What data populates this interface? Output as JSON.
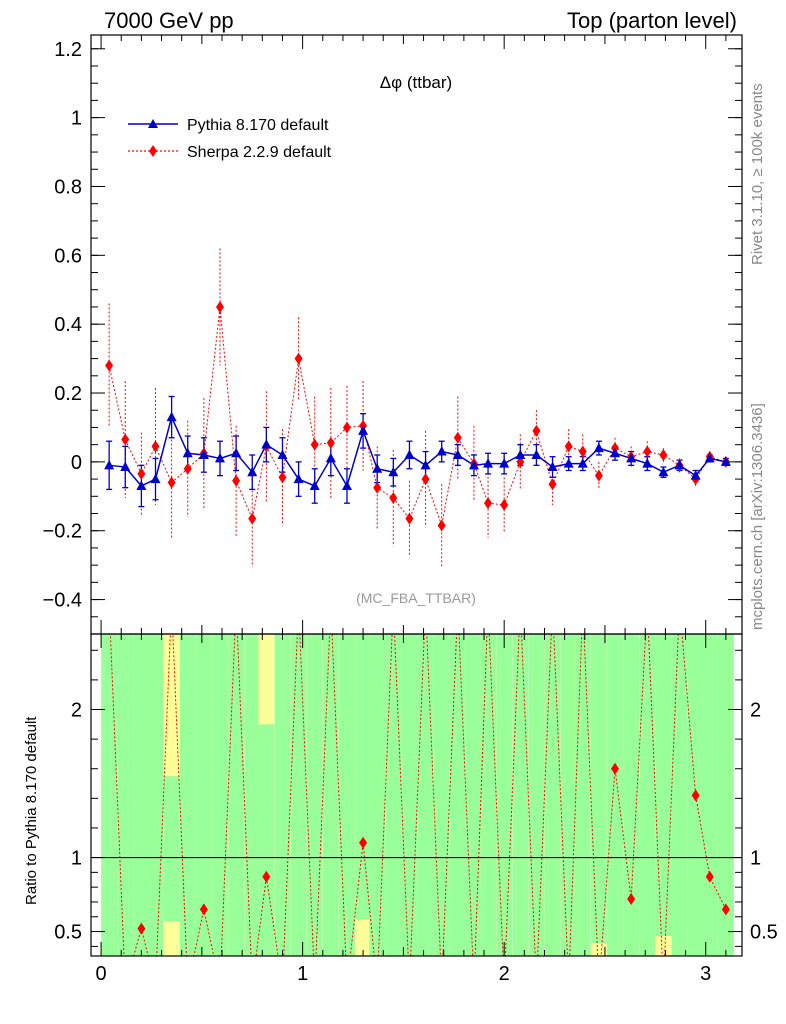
{
  "header": {
    "left": "7000 GeV pp",
    "right": "Top (parton level)"
  },
  "side_labels": {
    "rivet": "Rivet 3.1.10, ≥ 100k events",
    "mcplots": "mcplots.cern.ch [arXiv:1306.3436]"
  },
  "watermark": "(MC_FBA_TTBAR)",
  "chart_data": [
    {
      "type": "line",
      "title": "Δφ (ttbar)",
      "xlim": [
        -0.05,
        3.18
      ],
      "ylim": [
        -0.5,
        1.24
      ],
      "y_ticks": [
        -0.4,
        -0.2,
        0,
        0.2,
        0.4,
        0.6,
        0.8,
        1.0,
        1.2
      ],
      "y_tick_labels": [
        "−0.4",
        "−0.2",
        "0",
        "0.2",
        "0.4",
        "0.6",
        "0.8",
        "1",
        "1.2"
      ],
      "legend_position": "top-left",
      "x": [
        0.04,
        0.12,
        0.2,
        0.27,
        0.35,
        0.43,
        0.51,
        0.59,
        0.67,
        0.75,
        0.82,
        0.9,
        0.98,
        1.06,
        1.14,
        1.22,
        1.3,
        1.37,
        1.45,
        1.53,
        1.61,
        1.69,
        1.77,
        1.85,
        1.92,
        2.0,
        2.08,
        2.16,
        2.24,
        2.32,
        2.39,
        2.47,
        2.55,
        2.63,
        2.71,
        2.79,
        2.87,
        2.95,
        3.02,
        3.1
      ],
      "series": [
        {
          "name": "Pythia 8.170 default",
          "color": "#0000cc",
          "marker": "triangle",
          "values": [
            -0.01,
            -0.015,
            -0.07,
            -0.05,
            0.13,
            0.025,
            0.02,
            0.01,
            0.025,
            -0.03,
            0.05,
            0.02,
            -0.05,
            -0.07,
            0.01,
            -0.07,
            0.09,
            -0.02,
            -0.03,
            0.02,
            -0.01,
            0.03,
            0.02,
            -0.01,
            -0.005,
            -0.005,
            0.02,
            0.02,
            -0.015,
            -0.005,
            -0.005,
            0.04,
            0.025,
            0.01,
            -0.005,
            -0.03,
            -0.01,
            -0.04,
            0.01,
            0.0
          ],
          "errors": [
            0.07,
            0.06,
            0.06,
            0.06,
            0.06,
            0.05,
            0.05,
            0.05,
            0.05,
            0.05,
            0.05,
            0.05,
            0.05,
            0.05,
            0.05,
            0.05,
            0.05,
            0.04,
            0.04,
            0.04,
            0.04,
            0.03,
            0.03,
            0.03,
            0.03,
            0.03,
            0.03,
            0.03,
            0.03,
            0.02,
            0.02,
            0.02,
            0.02,
            0.02,
            0.02,
            0.015,
            0.015,
            0.015,
            0.01,
            0.01
          ]
        },
        {
          "name": "Sherpa 2.2.9 default",
          "color": "#ff0000",
          "marker": "diamond",
          "values": [
            0.28,
            0.065,
            -0.035,
            0.045,
            -0.06,
            -0.02,
            0.025,
            0.45,
            -0.055,
            -0.165,
            0.045,
            -0.045,
            0.3,
            0.05,
            0.055,
            0.1,
            0.105,
            -0.075,
            -0.105,
            -0.165,
            -0.05,
            -0.185,
            0.07,
            -0.005,
            -0.12,
            -0.125,
            0.0,
            0.09,
            -0.065,
            0.045,
            0.03,
            -0.04,
            0.04,
            0.015,
            0.03,
            0.02,
            -0.01,
            -0.05,
            0.015,
            0.0
          ],
          "errors": [
            0.18,
            0.17,
            0.12,
            0.17,
            0.16,
            0.14,
            0.16,
            0.17,
            0.16,
            0.14,
            0.16,
            0.14,
            0.12,
            0.14,
            0.16,
            0.12,
            0.13,
            0.12,
            0.14,
            0.11,
            0.14,
            0.12,
            0.12,
            0.11,
            0.1,
            0.08,
            0.08,
            0.06,
            0.06,
            0.05,
            0.05,
            0.04,
            0.03,
            0.03,
            0.03,
            0.02,
            0.02,
            0.02,
            0.015,
            0.01
          ]
        }
      ]
    },
    {
      "type": "line",
      "ylabel": "Ratio to Pythia 8.170 default",
      "xlim": [
        -0.05,
        3.18
      ],
      "ylim": [
        0.335,
        2.51
      ],
      "x_ticks": [
        0,
        1,
        2,
        3
      ],
      "y_ticks": [
        0.5,
        1,
        2
      ],
      "y_tick_labels": [
        "0.5",
        "1",
        "2"
      ],
      "reference_line": 1,
      "band_colors": {
        "inner": "#99ff99",
        "outer": "#ffff99"
      },
      "band_inner_top": [
        2.51,
        2.51,
        2.51,
        2.51,
        1.55,
        2.51,
        2.51,
        2.51,
        2.51,
        2.51,
        1.9,
        2.51,
        2.51,
        2.51,
        2.51,
        2.51,
        2.51,
        2.51,
        2.51,
        2.51,
        2.51,
        2.51,
        2.51,
        2.51,
        2.51,
        2.51,
        2.51,
        2.51,
        2.51,
        2.51,
        2.51,
        2.51,
        2.51,
        2.51,
        2.51,
        2.51,
        2.51,
        2.51,
        2.51,
        2.51
      ],
      "band_inner_bottom": [
        0.335,
        0.335,
        0.335,
        0.335,
        0.57,
        0.335,
        0.335,
        0.335,
        0.335,
        0.335,
        0.335,
        0.335,
        0.335,
        0.335,
        0.335,
        0.335,
        0.58,
        0.335,
        0.335,
        0.335,
        0.335,
        0.335,
        0.335,
        0.335,
        0.335,
        0.335,
        0.335,
        0.335,
        0.335,
        0.335,
        0.335,
        0.42,
        0.335,
        0.335,
        0.335,
        0.47,
        0.335,
        0.335,
        0.335,
        0.335
      ],
      "ratio_values": [
        null,
        null,
        0.52,
        null,
        null,
        null,
        0.65,
        null,
        null,
        null,
        0.87,
        null,
        null,
        null,
        null,
        null,
        1.1,
        null,
        null,
        null,
        null,
        null,
        null,
        null,
        null,
        null,
        null,
        null,
        null,
        null,
        null,
        null,
        1.6,
        0.72,
        null,
        null,
        null,
        1.42,
        0.87,
        0.65
      ]
    }
  ]
}
